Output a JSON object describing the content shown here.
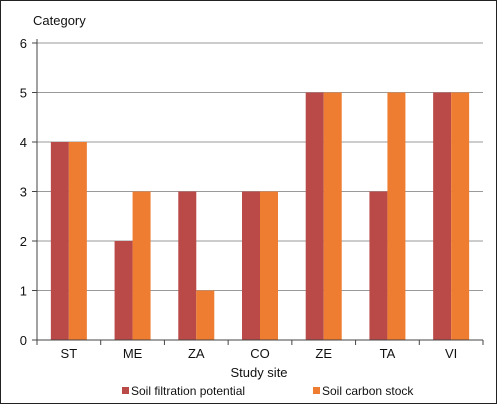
{
  "chart_data": {
    "type": "bar",
    "title": "",
    "ylabel": "Category",
    "xlabel": "Study site",
    "categories": [
      "ST",
      "ME",
      "ZA",
      "CO",
      "ZE",
      "TA",
      "VI"
    ],
    "series": [
      {
        "name": "Soil filtration potential",
        "color": "#b94a48",
        "values": [
          4,
          2,
          3,
          3,
          5,
          3,
          5
        ]
      },
      {
        "name": "Soil carbon stock",
        "color": "#ef7d31",
        "values": [
          4,
          3,
          1,
          3,
          5,
          5,
          5
        ]
      }
    ],
    "ylim": [
      0,
      6
    ],
    "yticks": [
      0,
      1,
      2,
      3,
      4,
      5,
      6
    ],
    "grid": true,
    "legend_position": "bottom"
  }
}
